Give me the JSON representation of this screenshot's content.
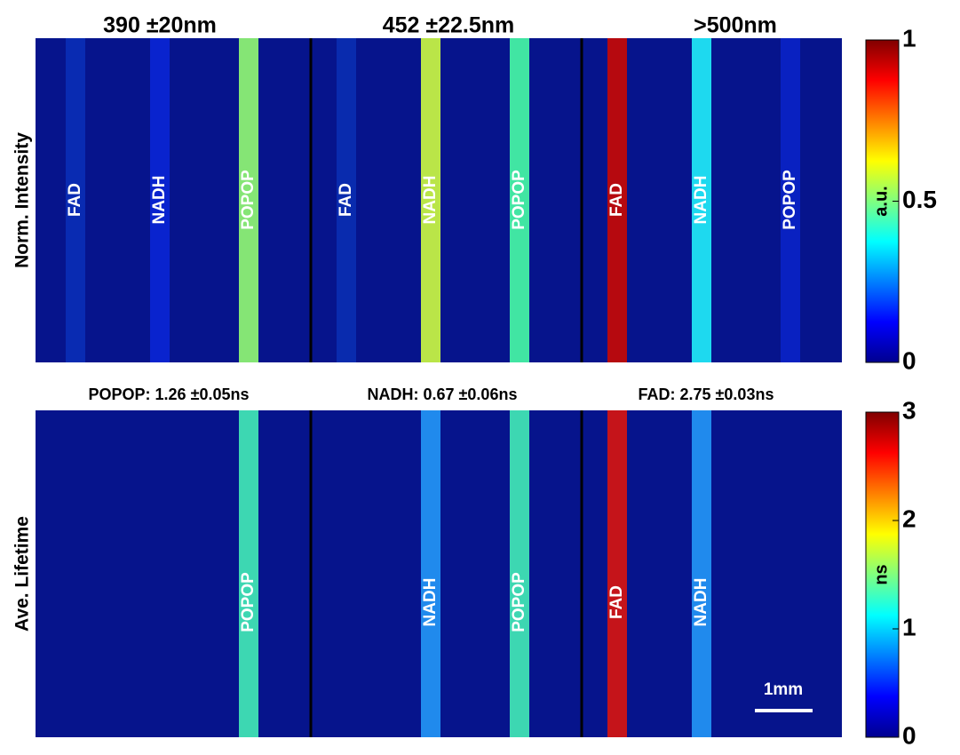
{
  "top_panel": {
    "y_label": "Norm. Intensity",
    "filters": [
      "390 ±20nm",
      "452 ±22.5nm",
      ">500nm"
    ],
    "stripes": [
      {
        "label": "FAD",
        "color": "#0a2cb4"
      },
      {
        "label": "NADH",
        "color": "#0a24d2"
      },
      {
        "label": "POPOP",
        "color": "#8cf074"
      },
      {
        "label": "FAD",
        "color": "#0a2cb0"
      },
      {
        "label": "NADH",
        "color": "#c4f044"
      },
      {
        "label": "POPOP",
        "color": "#44f0a4"
      },
      {
        "label": "FAD",
        "color": "#c00808"
      },
      {
        "label": "NADH",
        "color": "#20e4f4"
      },
      {
        "label": "POPOP",
        "color": "#0a22c4"
      }
    ],
    "colorbar": {
      "label": "a.u.",
      "lim": [
        0,
        1
      ],
      "ticks": [
        0,
        0.5,
        1
      ]
    }
  },
  "bottom_panel": {
    "y_label": "Ave. Lifetime",
    "lifetimes": [
      "POPOP: 1.26 ±0.05ns",
      "NADH: 0.67 ±0.06ns",
      "FAD: 2.75 ±0.03ns"
    ],
    "stripes": [
      {
        "label": "POPOP",
        "color": "#40e2b4"
      },
      {
        "label": "NADH",
        "color": "#2290f2"
      },
      {
        "label": "POPOP",
        "color": "#40e2b4"
      },
      {
        "label": "FAD",
        "color": "#d01414"
      },
      {
        "label": "NADH",
        "color": "#2290f2"
      }
    ],
    "colorbar": {
      "label": "ns",
      "lim": [
        0,
        3
      ],
      "ticks": [
        0,
        1,
        2,
        3
      ]
    },
    "scale_bar": "1mm"
  }
}
